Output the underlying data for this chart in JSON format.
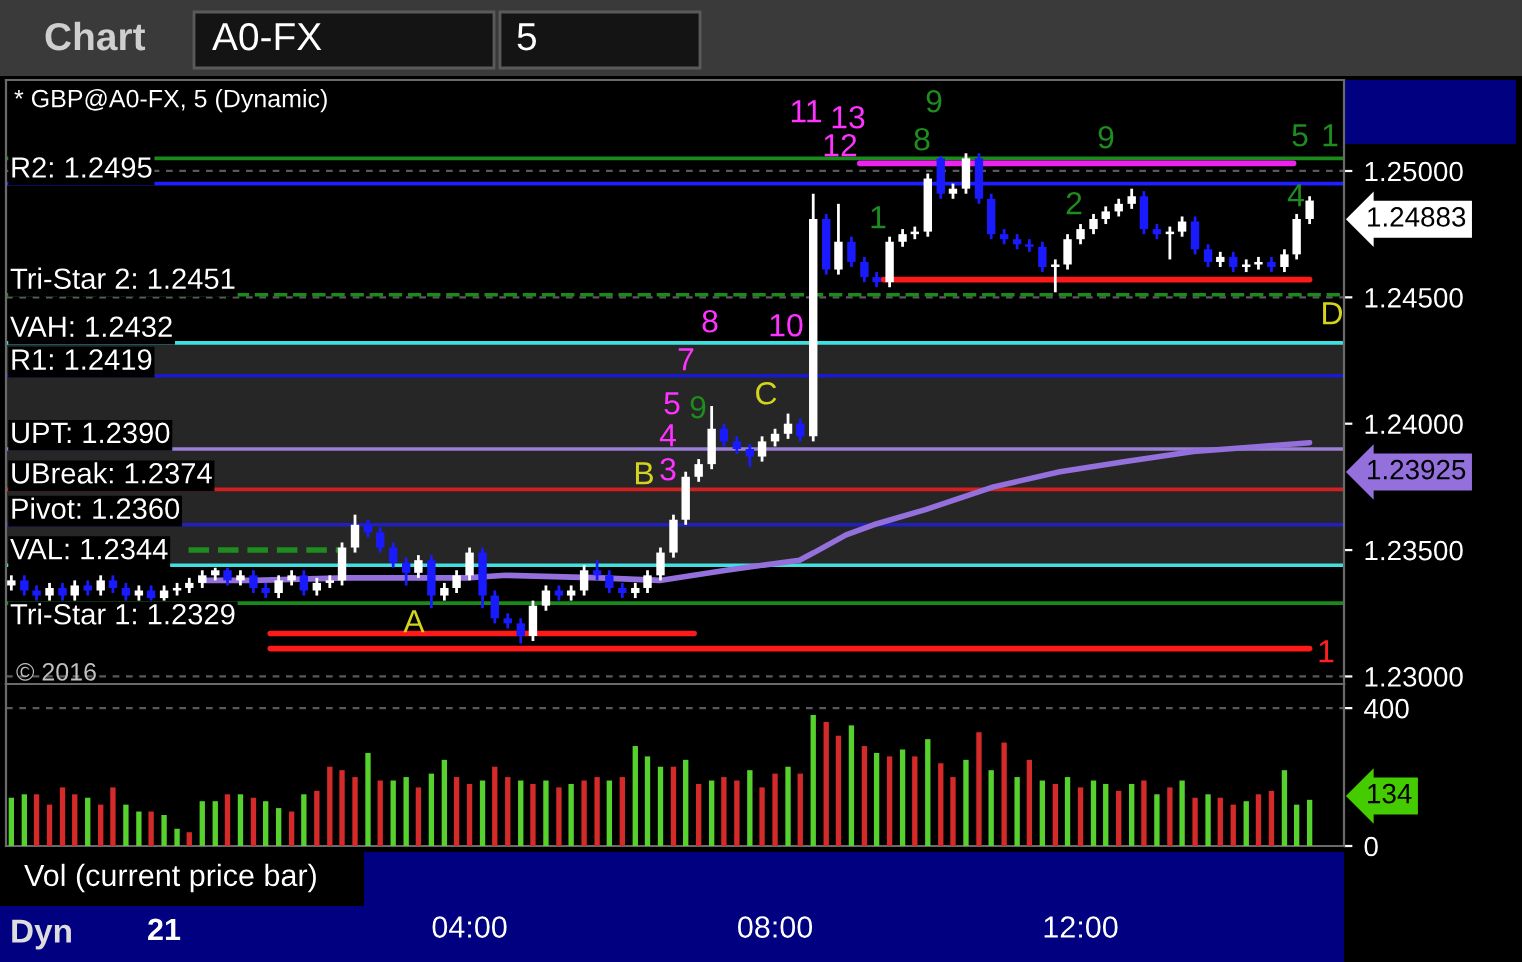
{
  "chart_data": [
    {
      "type": "candlestick",
      "title": "* GBP@A0-FX, 5 (Dynamic)",
      "x": [
        -2,
        -1.83,
        -1.67,
        -1.5,
        -1.33,
        -1.17,
        -1,
        -0.83,
        -0.67,
        -0.5,
        -0.33,
        -0.17,
        0,
        0.17,
        0.33,
        0.5,
        0.67,
        0.83,
        1,
        1.17,
        1.33,
        1.5,
        1.67,
        1.83,
        2,
        2.17,
        2.33,
        2.5,
        2.67,
        2.83,
        3,
        3.17,
        3.33,
        3.5,
        3.67,
        3.83,
        4,
        4.17,
        4.33,
        4.5,
        4.67,
        4.83,
        5,
        5.17,
        5.33,
        5.5,
        5.67,
        5.83,
        6,
        6.17,
        6.33,
        6.5,
        6.67,
        6.83,
        7,
        7.17,
        7.33,
        7.5,
        7.67,
        7.83,
        8,
        8.17,
        8.33,
        8.5,
        8.67,
        8.83,
        9,
        9.17,
        9.33,
        9.5,
        9.67,
        9.83,
        10,
        10.17,
        10.33,
        10.5,
        10.67,
        10.83,
        11,
        11.17,
        11.33,
        11.5,
        11.67,
        11.83,
        12,
        12.17,
        12.33,
        12.5,
        12.67,
        12.83,
        13,
        13.17,
        13.33,
        13.5,
        13.67,
        13.83,
        14,
        14.17,
        14.33,
        14.5,
        14.67,
        14.83,
        15
      ],
      "ohlc": [
        [
          1.2336,
          1.234,
          1.2334,
          1.2338
        ],
        [
          1.2338,
          1.234,
          1.2332,
          1.2334
        ],
        [
          1.2334,
          1.2336,
          1.233,
          1.2332
        ],
        [
          1.2332,
          1.2337,
          1.233,
          1.2335
        ],
        [
          1.2335,
          1.2337,
          1.233,
          1.2332
        ],
        [
          1.2332,
          1.2338,
          1.233,
          1.2336
        ],
        [
          1.2336,
          1.2338,
          1.2332,
          1.2334
        ],
        [
          1.2334,
          1.234,
          1.2332,
          1.2338
        ],
        [
          1.2338,
          1.234,
          1.2333,
          1.2335
        ],
        [
          1.2335,
          1.2337,
          1.233,
          1.2332
        ],
        [
          1.2332,
          1.2336,
          1.233,
          1.2334
        ],
        [
          1.2334,
          1.2336,
          1.233,
          1.2331
        ],
        [
          1.2331,
          1.2336,
          1.233,
          1.2334
        ],
        [
          1.2334,
          1.2337,
          1.2332,
          1.2335
        ],
        [
          1.2335,
          1.2339,
          1.2333,
          1.2337
        ],
        [
          1.2337,
          1.2342,
          1.2335,
          1.234
        ],
        [
          1.234,
          1.2343,
          1.2338,
          1.2342
        ],
        [
          1.2342,
          1.2343,
          1.2336,
          1.2338
        ],
        [
          1.2338,
          1.2342,
          1.2336,
          1.234
        ],
        [
          1.234,
          1.2342,
          1.2333,
          1.2335
        ],
        [
          1.2335,
          1.2337,
          1.2331,
          1.2333
        ],
        [
          1.2333,
          1.234,
          1.2331,
          1.2338
        ],
        [
          1.2338,
          1.2342,
          1.2336,
          1.234
        ],
        [
          1.234,
          1.2342,
          1.2332,
          1.2334
        ],
        [
          1.2334,
          1.2339,
          1.2332,
          1.2337
        ],
        [
          1.2337,
          1.234,
          1.2335,
          1.2338
        ],
        [
          1.2338,
          1.2353,
          1.2336,
          1.2351
        ],
        [
          1.2351,
          1.2364,
          1.2349,
          1.236
        ],
        [
          1.236,
          1.2362,
          1.2355,
          1.2357
        ],
        [
          1.2357,
          1.2359,
          1.2349,
          1.2351
        ],
        [
          1.2351,
          1.2353,
          1.2343,
          1.2345
        ],
        [
          1.2345,
          1.2347,
          1.2336,
          1.2341
        ],
        [
          1.2341,
          1.2348,
          1.2339,
          1.2346
        ],
        [
          1.2346,
          1.2348,
          1.2327,
          1.2332
        ],
        [
          1.2332,
          1.2337,
          1.233,
          1.2335
        ],
        [
          1.2335,
          1.2342,
          1.2333,
          1.234
        ],
        [
          1.234,
          1.2351,
          1.2338,
          1.2349
        ],
        [
          1.2349,
          1.2351,
          1.2327,
          1.2332
        ],
        [
          1.2332,
          1.2334,
          1.2321,
          1.2323
        ],
        [
          1.2323,
          1.2325,
          1.2319,
          1.2321
        ],
        [
          1.2321,
          1.2323,
          1.2313,
          1.2316
        ],
        [
          1.2316,
          1.233,
          1.2314,
          1.2328
        ],
        [
          1.2328,
          1.2336,
          1.2326,
          1.2334
        ],
        [
          1.2334,
          1.2336,
          1.233,
          1.2332
        ],
        [
          1.2332,
          1.2336,
          1.233,
          1.2334
        ],
        [
          1.2334,
          1.2344,
          1.2332,
          1.2342
        ],
        [
          1.2342,
          1.2346,
          1.2338,
          1.234
        ],
        [
          1.234,
          1.2342,
          1.2333,
          1.2335
        ],
        [
          1.2335,
          1.2337,
          1.2331,
          1.2333
        ],
        [
          1.2333,
          1.2337,
          1.2331,
          1.2335
        ],
        [
          1.2335,
          1.2342,
          1.2333,
          1.234
        ],
        [
          1.234,
          1.2351,
          1.2338,
          1.2349
        ],
        [
          1.2349,
          1.2364,
          1.2347,
          1.2362
        ],
        [
          1.2362,
          1.2381,
          1.236,
          1.2379
        ],
        [
          1.2379,
          1.2386,
          1.2377,
          1.2384
        ],
        [
          1.2384,
          1.2407,
          1.2382,
          1.2398
        ],
        [
          1.2398,
          1.24,
          1.2391,
          1.2393
        ],
        [
          1.2393,
          1.2395,
          1.2388,
          1.239
        ],
        [
          1.239,
          1.2392,
          1.2383,
          1.2387
        ],
        [
          1.2387,
          1.2395,
          1.2385,
          1.2393
        ],
        [
          1.2393,
          1.2398,
          1.2391,
          1.2396
        ],
        [
          1.2396,
          1.2404,
          1.2394,
          1.24
        ],
        [
          1.24,
          1.2402,
          1.2393,
          1.2395
        ],
        [
          1.2395,
          1.2491,
          1.2393,
          1.2481
        ],
        [
          1.2481,
          1.2483,
          1.2459,
          1.2461
        ],
        [
          1.2461,
          1.2487,
          1.2459,
          1.2472
        ],
        [
          1.2472,
          1.2474,
          1.2462,
          1.2464
        ],
        [
          1.2464,
          1.2466,
          1.2456,
          1.2458
        ],
        [
          1.2458,
          1.246,
          1.2454,
          1.2456
        ],
        [
          1.2456,
          1.2474,
          1.2454,
          1.2472
        ],
        [
          1.2472,
          1.2477,
          1.247,
          1.2475
        ],
        [
          1.2475,
          1.2478,
          1.2473,
          1.2476
        ],
        [
          1.2476,
          1.2499,
          1.2474,
          1.2497
        ],
        [
          1.2505,
          1.2506,
          1.2489,
          1.2491
        ],
        [
          1.2491,
          1.2495,
          1.2489,
          1.2493
        ],
        [
          1.2493,
          1.2507,
          1.2491,
          1.2505
        ],
        [
          1.2505,
          1.2507,
          1.2487,
          1.2489
        ],
        [
          1.2489,
          1.2491,
          1.2473,
          1.2475
        ],
        [
          1.2475,
          1.2477,
          1.2471,
          1.2473
        ],
        [
          1.2473,
          1.2475,
          1.2469,
          1.2471
        ],
        [
          1.2471,
          1.2473,
          1.2468,
          1.247
        ],
        [
          1.247,
          1.2472,
          1.246,
          1.2462
        ],
        [
          1.2462,
          1.2465,
          1.2452,
          1.2463
        ],
        [
          1.2463,
          1.2475,
          1.2461,
          1.2473
        ],
        [
          1.2473,
          1.2479,
          1.2471,
          1.2477
        ],
        [
          1.2477,
          1.2483,
          1.2475,
          1.2481
        ],
        [
          1.2481,
          1.2486,
          1.2479,
          1.2484
        ],
        [
          1.2484,
          1.2489,
          1.2482,
          1.2487
        ],
        [
          1.2487,
          1.2493,
          1.2485,
          1.249
        ],
        [
          1.249,
          1.2492,
          1.2475,
          1.2477
        ],
        [
          1.2477,
          1.2479,
          1.2473,
          1.2475
        ],
        [
          1.2475,
          1.2478,
          1.2465,
          1.2476
        ],
        [
          1.2476,
          1.2482,
          1.2474,
          1.248
        ],
        [
          1.248,
          1.2482,
          1.2467,
          1.2469
        ],
        [
          1.2469,
          1.2471,
          1.2462,
          1.2464
        ],
        [
          1.2464,
          1.2468,
          1.2462,
          1.2466
        ],
        [
          1.2466,
          1.2468,
          1.246,
          1.2462
        ],
        [
          1.2462,
          1.2465,
          1.246,
          1.2463
        ],
        [
          1.2463,
          1.2466,
          1.2461,
          1.2464
        ],
        [
          1.2464,
          1.2466,
          1.246,
          1.2462
        ],
        [
          1.2462,
          1.2469,
          1.246,
          1.2467
        ],
        [
          1.2467,
          1.2483,
          1.2465,
          1.2481
        ],
        [
          1.2481,
          1.249,
          1.2479,
          1.24883
        ]
      ],
      "colors": [
        "#ffffff",
        "#1a1aff",
        "#1a1aff",
        "#ffffff",
        "#1a1aff",
        "#ffffff",
        "#1a1aff",
        "#ffffff",
        "#1a1aff",
        "#1a1aff",
        "#ffffff",
        "#1a1aff",
        "#ffffff",
        "#ffffff",
        "#ffffff",
        "#ffffff",
        "#ffffff",
        "#1a1aff",
        "#ffffff",
        "#1a1aff",
        "#1a1aff",
        "#ffffff",
        "#ffffff",
        "#1a1aff",
        "#ffffff",
        "#ffffff",
        "#ffffff",
        "#ffffff",
        "#1a1aff",
        "#1a1aff",
        "#1a1aff",
        "#1a1aff",
        "#ffffff",
        "#1a1aff",
        "#ffffff",
        "#ffffff",
        "#ffffff",
        "#1a1aff",
        "#1a1aff",
        "#1a1aff",
        "#1a1aff",
        "#ffffff",
        "#ffffff",
        "#1a1aff",
        "#ffffff",
        "#ffffff",
        "#1a1aff",
        "#1a1aff",
        "#1a1aff",
        "#ffffff",
        "#ffffff",
        "#ffffff",
        "#ffffff",
        "#ffffff",
        "#ffffff",
        "#ffffff",
        "#1a1aff",
        "#1a1aff",
        "#1a1aff",
        "#ffffff",
        "#ffffff",
        "#ffffff",
        "#1a1aff",
        "#ffffff",
        "#1a1aff",
        "#ffffff",
        "#1a1aff",
        "#1a1aff",
        "#1a1aff",
        "#ffffff",
        "#ffffff",
        "#ffffff",
        "#ffffff",
        "#1a1aff",
        "#ffffff",
        "#ffffff",
        "#1a1aff",
        "#1a1aff",
        "#1a1aff",
        "#1a1aff",
        "#1a1aff",
        "#1a1aff",
        "#ffffff",
        "#ffffff",
        "#ffffff",
        "#ffffff",
        "#ffffff",
        "#ffffff",
        "#ffffff",
        "#1a1aff",
        "#1a1aff",
        "#ffffff",
        "#ffffff",
        "#1a1aff",
        "#1a1aff",
        "#ffffff",
        "#1a1aff",
        "#ffffff",
        "#ffffff",
        "#1a1aff",
        "#ffffff",
        "#ffffff",
        "#ffffff"
      ],
      "series": [
        {
          "type": "line",
          "color": "#9370db",
          "x": [
            0.5,
            1.18,
            2.38,
            3.95,
            4.48,
            5.71,
            6.49,
            7.36,
            8.32,
            8.51,
            8.93,
            9.29,
            9.97,
            10.86,
            11.73,
            12.59,
            13.48,
            14.35,
            15
          ],
          "values": [
            1.2338,
            1.2338,
            1.2339,
            1.2339,
            1.234,
            1.2339,
            1.2338,
            1.2342,
            1.2346,
            1.2349,
            1.2356,
            1.236,
            1.2366,
            1.2375,
            1.2381,
            1.2385,
            1.2389,
            1.2391,
            1.23925
          ]
        },
        {
          "type": "line",
          "color": "#1e8c1e",
          "line_style": "dashed",
          "x": [
            0.32,
            2.3
          ],
          "values": [
            1.235,
            1.235
          ]
        },
        {
          "type": "line",
          "color": "#ee22ee",
          "x": [
            9.11,
            14.79
          ],
          "values": [
            1.2503,
            1.2503
          ]
        },
        {
          "type": "line",
          "color": "#ff1a1a",
          "x": [
            9.42,
            15
          ],
          "values": [
            1.2457,
            1.2457
          ]
        },
        {
          "type": "line",
          "color": "#ff1a1a",
          "x": [
            1.39,
            6.94
          ],
          "values": [
            1.2317,
            1.2317
          ]
        },
        {
          "type": "line",
          "color": "#ff1a1a",
          "x": [
            1.39,
            15
          ],
          "values": [
            1.2311,
            1.2311
          ]
        }
      ],
      "xlim": [
        -2.07,
        15.45
      ],
      "ylim": [
        1.2297,
        1.2536
      ],
      "yticks": [
        {
          "value": 1.25,
          "label": "1.25000"
        },
        {
          "value": 1.245,
          "label": "1.24500"
        },
        {
          "value": 1.24,
          "label": "1.24000"
        },
        {
          "value": 1.235,
          "label": "1.23500"
        },
        {
          "value": 1.23,
          "label": "1.23000"
        }
      ],
      "tick_labels": "y",
      "grid": "y",
      "bands": [
        {
          "axis": "y",
          "from": 1.2344,
          "to": 1.2432,
          "color": "#262626"
        }
      ],
      "ref_lines": [
        {
          "axis": "y",
          "value": 1.2505,
          "color": "#1a8a1a"
        },
        {
          "axis": "y",
          "value": 1.2495,
          "label": "R2: 1.2495",
          "color": "#1f1fff"
        },
        {
          "axis": "y",
          "value": 1.2451,
          "label": "Tri-Star 2: 1.2451",
          "color": "#1a8a1a",
          "line_style": "dashed"
        },
        {
          "axis": "y",
          "value": 1.2432,
          "label": "VAH: 1.2432",
          "color": "#40e0e0"
        },
        {
          "axis": "y",
          "value": 1.2419,
          "label": "R1: 1.2419",
          "color": "#1a1acd"
        },
        {
          "axis": "y",
          "value": 1.239,
          "label": "UPT: 1.2390",
          "color": "#9a7fd6"
        },
        {
          "axis": "y",
          "value": 1.2374,
          "label": "UBreak: 1.2374",
          "color": "#d02020"
        },
        {
          "axis": "y",
          "value": 1.236,
          "label": "Pivot: 1.2360",
          "color": "#2020c0"
        },
        {
          "axis": "y",
          "value": 1.2344,
          "label": "VAL: 1.2344",
          "color": "#40e0e0"
        },
        {
          "axis": "y",
          "value": 1.2329,
          "label": "Tri-Star 1: 1.2329",
          "color": "#1a8a1a"
        }
      ],
      "annotations": [
        "Chart",
        "A0-FX",
        "5",
        "© 2016",
        "1.24883",
        "1.23925",
        "11",
        "13",
        "12",
        "10",
        "8",
        "7",
        "5",
        "4",
        "3",
        "9",
        "9",
        "8",
        "1",
        "2",
        "9",
        "5",
        "4",
        "1",
        "A",
        "B",
        "C",
        "D",
        "1"
      ]
    },
    {
      "type": "bar",
      "x": [
        -2,
        -1.83,
        -1.67,
        -1.5,
        -1.33,
        -1.17,
        -1,
        -0.83,
        -0.67,
        -0.5,
        -0.33,
        -0.17,
        0,
        0.17,
        0.33,
        0.5,
        0.67,
        0.83,
        1,
        1.17,
        1.33,
        1.5,
        1.67,
        1.83,
        2,
        2.17,
        2.33,
        2.5,
        2.67,
        2.83,
        3,
        3.17,
        3.33,
        3.5,
        3.67,
        3.83,
        4,
        4.17,
        4.33,
        4.5,
        4.67,
        4.83,
        5,
        5.17,
        5.33,
        5.5,
        5.67,
        5.83,
        6,
        6.17,
        6.33,
        6.5,
        6.67,
        6.83,
        7,
        7.17,
        7.33,
        7.5,
        7.67,
        7.83,
        8,
        8.17,
        8.33,
        8.5,
        8.67,
        8.83,
        9,
        9.17,
        9.33,
        9.5,
        9.67,
        9.83,
        10,
        10.17,
        10.33,
        10.5,
        10.67,
        10.83,
        11,
        11.17,
        11.33,
        11.5,
        11.67,
        11.83,
        12,
        12.17,
        12.33,
        12.5,
        12.67,
        12.83,
        13,
        13.17,
        13.33,
        13.5,
        13.67,
        13.83,
        14,
        14.17,
        14.33,
        14.5,
        14.67,
        14.83,
        15
      ],
      "values": [
        140,
        150,
        150,
        120,
        170,
        150,
        140,
        120,
        170,
        120,
        100,
        100,
        90,
        50,
        40,
        130,
        130,
        150,
        150,
        140,
        130,
        110,
        100,
        150,
        160,
        230,
        220,
        200,
        270,
        190,
        190,
        200,
        170,
        210,
        250,
        200,
        180,
        190,
        230,
        200,
        190,
        180,
        190,
        170,
        180,
        190,
        200,
        190,
        200,
        290,
        260,
        230,
        230,
        250,
        180,
        190,
        200,
        190,
        220,
        170,
        210,
        230,
        210,
        380,
        360,
        320,
        350,
        290,
        270,
        260,
        280,
        260,
        310,
        240,
        200,
        250,
        330,
        220,
        300,
        200,
        250,
        190,
        180,
        200,
        170,
        190,
        180,
        160,
        180,
        190,
        150,
        170,
        190,
        140,
        150,
        140,
        120,
        130,
        150,
        160,
        220,
        120,
        134
      ],
      "colors": [
        "#56d12e",
        "#56d12e",
        "#d42a2a",
        "#d42a2a",
        "#d42a2a",
        "#d42a2a",
        "#56d12e",
        "#d42a2a",
        "#d42a2a",
        "#56d12e",
        "#56d12e",
        "#d42a2a",
        "#56d12e",
        "#56d12e",
        "#d42a2a",
        "#56d12e",
        "#56d12e",
        "#d42a2a",
        "#56d12e",
        "#d42a2a",
        "#56d12e",
        "#56d12e",
        "#d42a2a",
        "#56d12e",
        "#d42a2a",
        "#d42a2a",
        "#d42a2a",
        "#d42a2a",
        "#56d12e",
        "#d42a2a",
        "#56d12e",
        "#56d12e",
        "#d42a2a",
        "#56d12e",
        "#56d12e",
        "#d42a2a",
        "#d42a2a",
        "#56d12e",
        "#d42a2a",
        "#d42a2a",
        "#56d12e",
        "#d42a2a",
        "#56d12e",
        "#d42a2a",
        "#56d12e",
        "#d42a2a",
        "#d42a2a",
        "#56d12e",
        "#d42a2a",
        "#56d12e",
        "#56d12e",
        "#56d12e",
        "#d42a2a",
        "#56d12e",
        "#d42a2a",
        "#56d12e",
        "#d42a2a",
        "#d42a2a",
        "#56d12e",
        "#d42a2a",
        "#d42a2a",
        "#56d12e",
        "#d42a2a",
        "#56d12e",
        "#d42a2a",
        "#d42a2a",
        "#56d12e",
        "#d42a2a",
        "#56d12e",
        "#d42a2a",
        "#56d12e",
        "#d42a2a",
        "#56d12e",
        "#d42a2a",
        "#d42a2a",
        "#56d12e",
        "#d42a2a",
        "#56d12e",
        "#d42a2a",
        "#56d12e",
        "#d42a2a",
        "#56d12e",
        "#d42a2a",
        "#56d12e",
        "#d42a2a",
        "#56d12e",
        "#56d12e",
        "#d42a2a",
        "#56d12e",
        "#d42a2a",
        "#56d12e",
        "#d42a2a",
        "#56d12e",
        "#d42a2a",
        "#56d12e",
        "#d42a2a",
        "#d42a2a",
        "#56d12e",
        "#d42a2a",
        "#d42a2a",
        "#56d12e",
        "#56d12e",
        "#56d12e"
      ],
      "xlim": [
        -2.07,
        15.45
      ],
      "ylim": [
        0,
        470
      ],
      "yticks": [
        0,
        400
      ],
      "xticks": [
        {
          "value": 4,
          "label": "04:00"
        },
        {
          "value": 8,
          "label": "08:00"
        },
        {
          "value": 12,
          "label": "12:00"
        }
      ],
      "grid": "y",
      "annotations": [
        "134",
        "Vol (current price bar)",
        "Dyn",
        "21"
      ]
    }
  ]
}
